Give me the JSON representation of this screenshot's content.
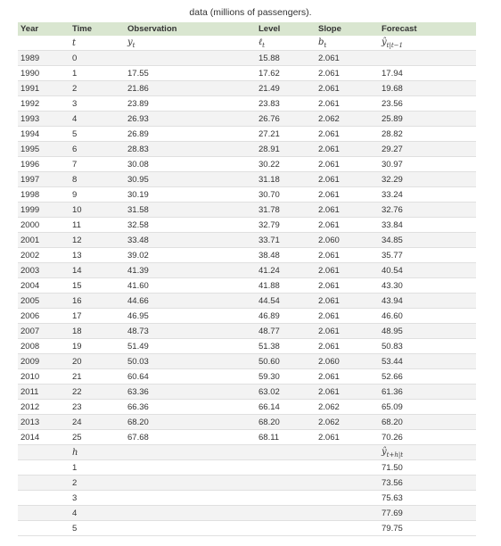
{
  "caption": "data (millions of passengers).",
  "table": {
    "header": [
      "Year",
      "Time",
      "Observation",
      "Level",
      "Slope",
      "Forecast"
    ],
    "notation": [
      null,
      "t",
      {
        "base": "y",
        "sub": "t"
      },
      {
        "base": "ℓ",
        "sub": "t"
      },
      {
        "base": "b",
        "sub": "t"
      },
      {
        "base": "ŷ",
        "sub": "t|t−1"
      }
    ],
    "rows": [
      [
        "1989",
        "0",
        null,
        "15.88",
        "2.061",
        null
      ],
      [
        "1990",
        "1",
        "17.55",
        "17.62",
        "2.061",
        "17.94"
      ],
      [
        "1991",
        "2",
        "21.86",
        "21.49",
        "2.061",
        "19.68"
      ],
      [
        "1992",
        "3",
        "23.89",
        "23.83",
        "2.061",
        "23.56"
      ],
      [
        "1993",
        "4",
        "26.93",
        "26.76",
        "2.062",
        "25.89"
      ],
      [
        "1994",
        "5",
        "26.89",
        "27.21",
        "2.061",
        "28.82"
      ],
      [
        "1995",
        "6",
        "28.83",
        "28.91",
        "2.061",
        "29.27"
      ],
      [
        "1996",
        "7",
        "30.08",
        "30.22",
        "2.061",
        "30.97"
      ],
      [
        "1997",
        "8",
        "30.95",
        "31.18",
        "2.061",
        "32.29"
      ],
      [
        "1998",
        "9",
        "30.19",
        "30.70",
        "2.061",
        "33.24"
      ],
      [
        "1999",
        "10",
        "31.58",
        "31.78",
        "2.061",
        "32.76"
      ],
      [
        "2000",
        "11",
        "32.58",
        "32.79",
        "2.061",
        "33.84"
      ],
      [
        "2001",
        "12",
        "33.48",
        "33.71",
        "2.060",
        "34.85"
      ],
      [
        "2002",
        "13",
        "39.02",
        "38.48",
        "2.061",
        "35.77"
      ],
      [
        "2003",
        "14",
        "41.39",
        "41.24",
        "2.061",
        "40.54"
      ],
      [
        "2004",
        "15",
        "41.60",
        "41.88",
        "2.061",
        "43.30"
      ],
      [
        "2005",
        "16",
        "44.66",
        "44.54",
        "2.061",
        "43.94"
      ],
      [
        "2006",
        "17",
        "46.95",
        "46.89",
        "2.061",
        "46.60"
      ],
      [
        "2007",
        "18",
        "48.73",
        "48.77",
        "2.061",
        "48.95"
      ],
      [
        "2008",
        "19",
        "51.49",
        "51.38",
        "2.061",
        "50.83"
      ],
      [
        "2009",
        "20",
        "50.03",
        "50.60",
        "2.060",
        "53.44"
      ],
      [
        "2010",
        "21",
        "60.64",
        "59.30",
        "2.061",
        "52.66"
      ],
      [
        "2011",
        "22",
        "63.36",
        "63.02",
        "2.061",
        "61.36"
      ],
      [
        "2012",
        "23",
        "66.36",
        "66.14",
        "2.062",
        "65.09"
      ],
      [
        "2013",
        "24",
        "68.20",
        "68.20",
        "2.062",
        "68.20"
      ],
      [
        "2014",
        "25",
        "67.68",
        "68.11",
        "2.061",
        "70.26"
      ]
    ],
    "horizon_notation": {
      "h": "h",
      "forecast": {
        "base": "ŷ",
        "sub": "t+h|t"
      }
    },
    "horizon_rows": [
      [
        "1",
        "71.50"
      ],
      [
        "2",
        "73.56"
      ],
      [
        "3",
        "75.63"
      ],
      [
        "4",
        "77.69"
      ],
      [
        "5",
        "79.75"
      ]
    ]
  }
}
